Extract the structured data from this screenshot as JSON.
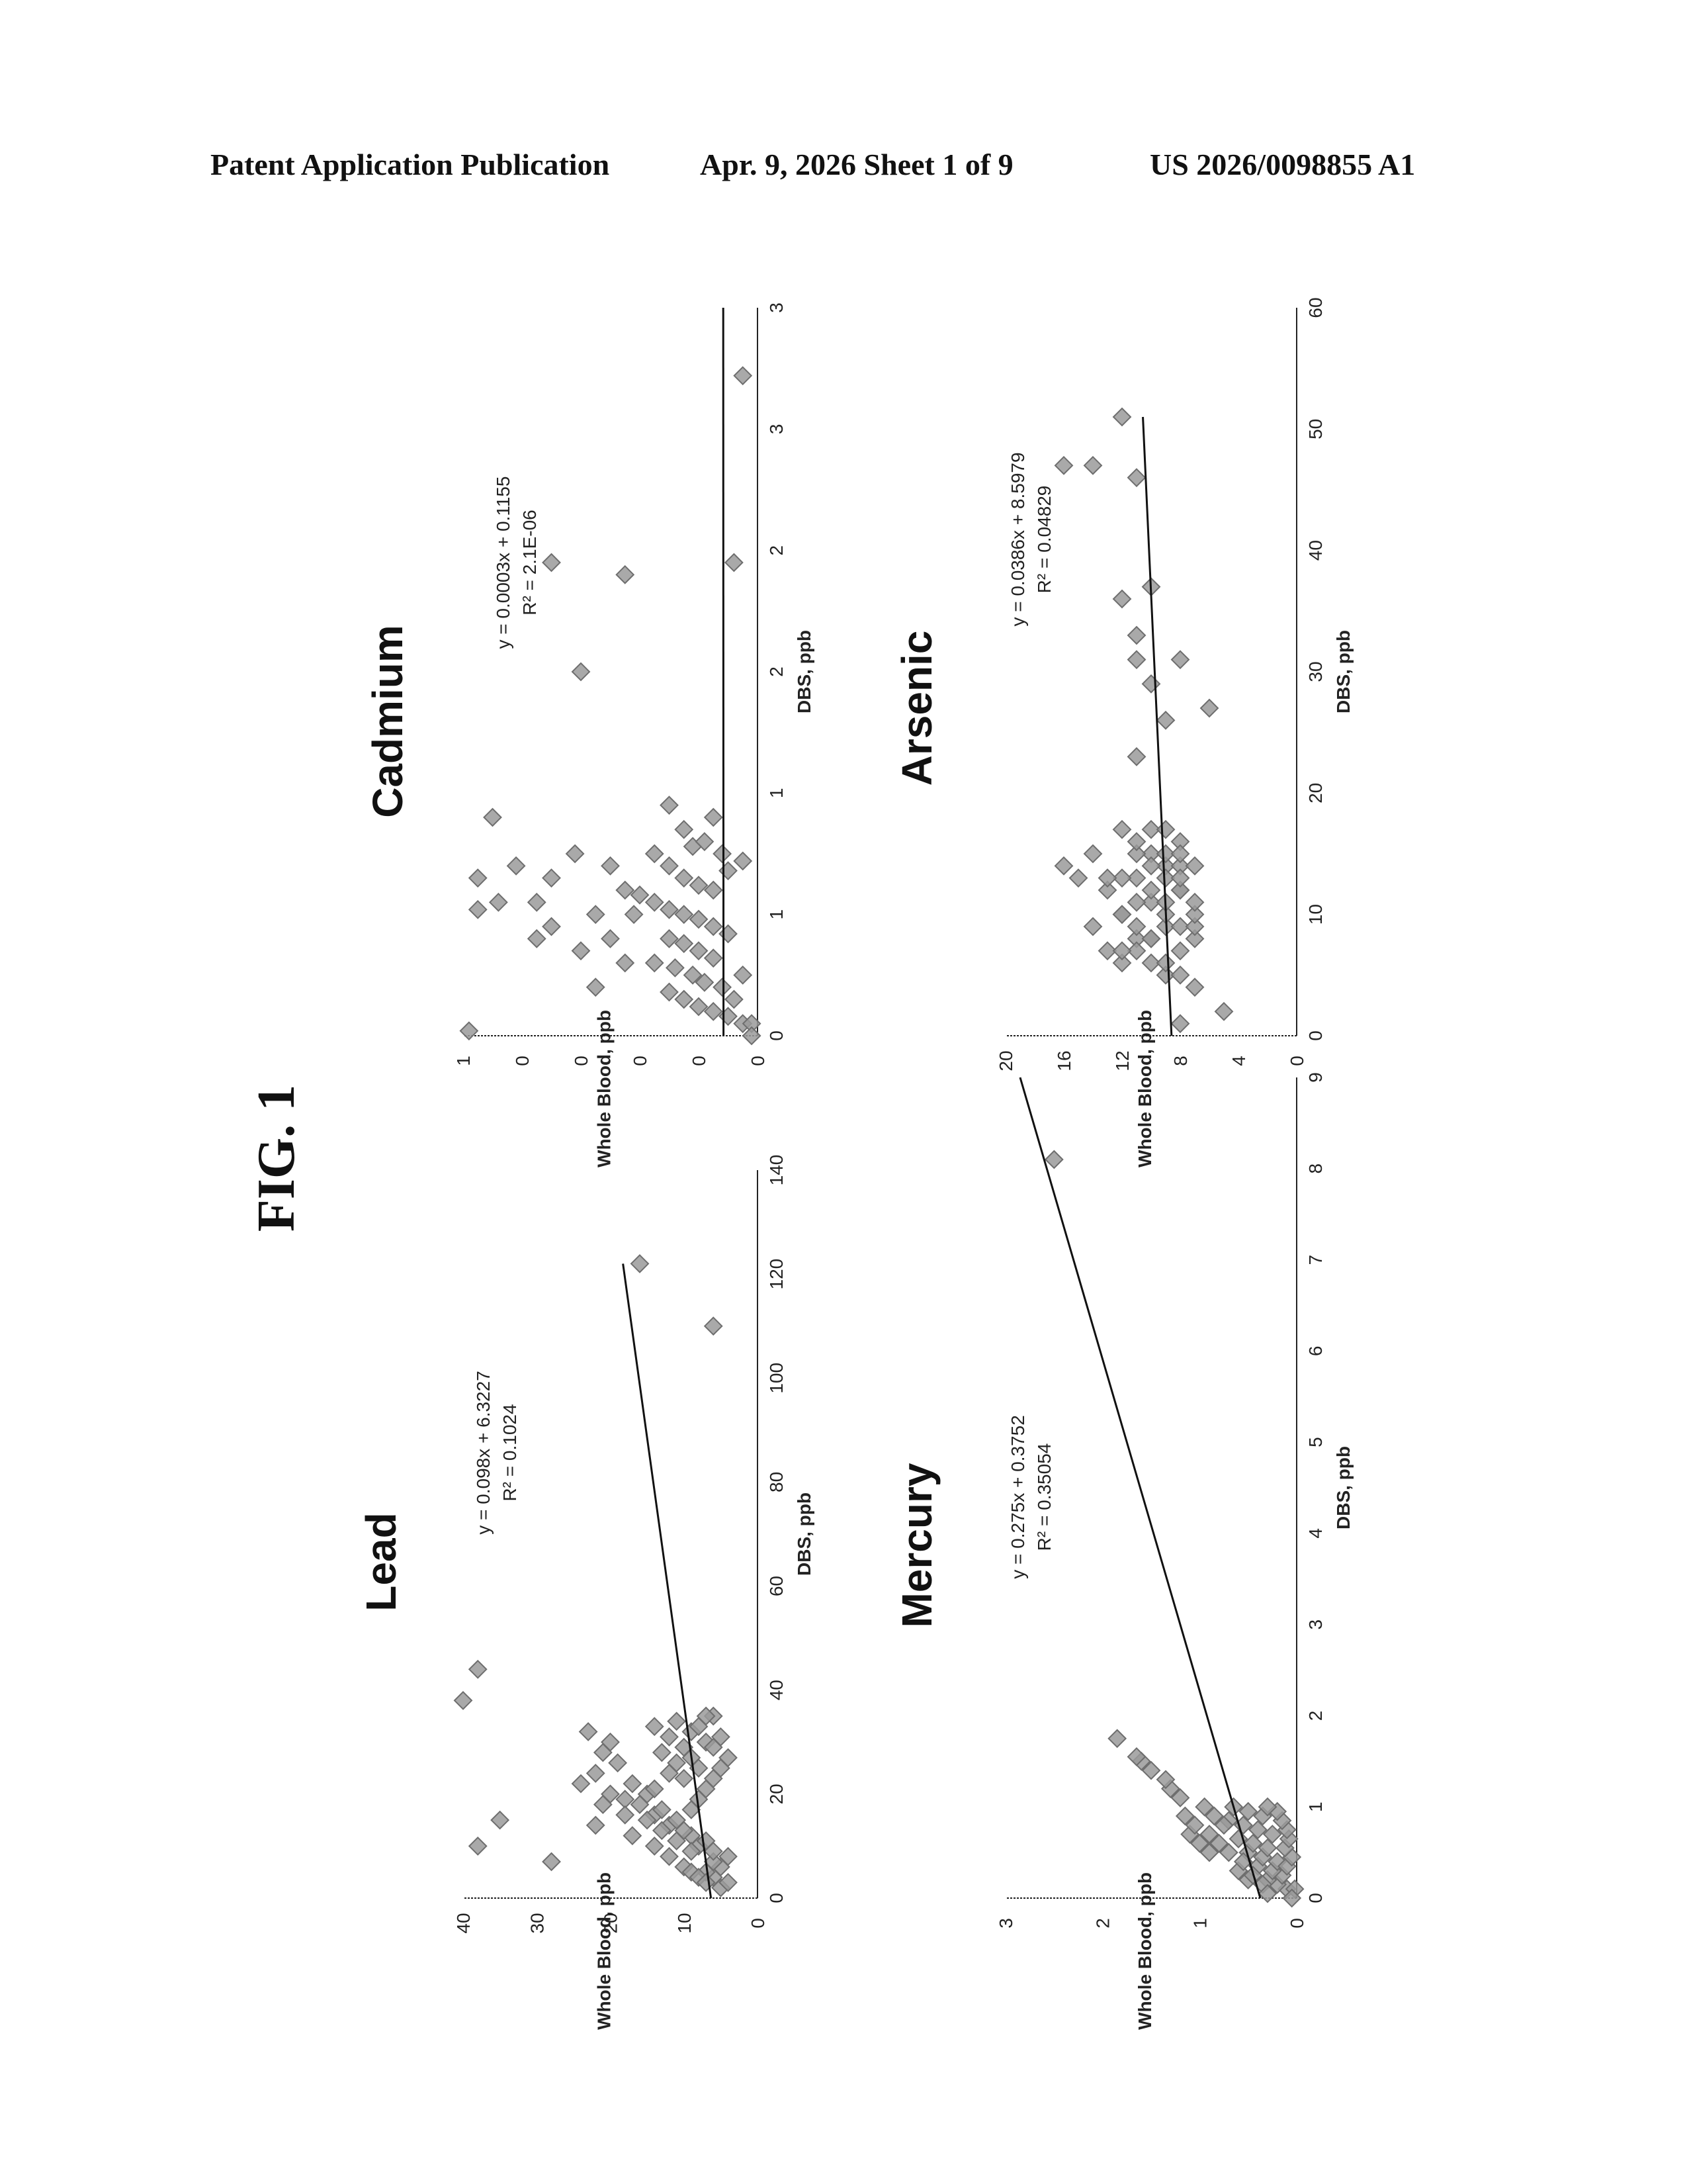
{
  "header": {
    "left": "Patent Application Publication",
    "date_sheet": "Apr. 9, 2026   Sheet 1 of 9",
    "number": "US 2026/0098855 A1"
  },
  "figure_label": "FIG. 1",
  "colors": {
    "marker": "#9a9a9a",
    "marker_stroke": "#6e6e6e",
    "line": "#111111",
    "axis": "#222222"
  },
  "chart_data": [
    {
      "type": "scatter",
      "title": "Lead",
      "xlabel": "DBS, ppb",
      "ylabel": "Whole Blood, ppb",
      "xlim": [
        0,
        140
      ],
      "ylim": [
        0,
        40
      ],
      "xticks": [
        "0",
        "20",
        "40",
        "60",
        "80",
        "100",
        "120",
        "140"
      ],
      "yticks": [
        "0",
        "10",
        "20",
        "30",
        "40"
      ],
      "equation": "y = 0.098x + 6.3227",
      "r2": "R² = 0.1024",
      "trendline": {
        "slope": 0.098,
        "intercept": 6.3227,
        "x": [
          0,
          122
        ]
      },
      "points": [
        [
          2,
          5
        ],
        [
          3,
          4
        ],
        [
          4,
          6
        ],
        [
          5,
          7
        ],
        [
          6,
          5
        ],
        [
          7,
          6
        ],
        [
          8,
          4
        ],
        [
          9,
          6
        ],
        [
          10,
          8
        ],
        [
          11,
          7
        ],
        [
          12,
          9
        ],
        [
          13,
          10
        ],
        [
          14,
          12
        ],
        [
          15,
          11
        ],
        [
          16,
          14
        ],
        [
          17,
          13
        ],
        [
          18,
          16
        ],
        [
          19,
          18
        ],
        [
          20,
          15
        ],
        [
          21,
          14
        ],
        [
          22,
          17
        ],
        [
          23,
          10
        ],
        [
          24,
          12
        ],
        [
          25,
          8
        ],
        [
          26,
          11
        ],
        [
          27,
          9
        ],
        [
          28,
          13
        ],
        [
          29,
          10
        ],
        [
          30,
          7
        ],
        [
          31,
          12
        ],
        [
          32,
          9
        ],
        [
          33,
          14
        ],
        [
          34,
          11
        ],
        [
          35,
          6
        ],
        [
          14,
          22
        ],
        [
          18,
          21
        ],
        [
          20,
          20
        ],
        [
          22,
          24
        ],
        [
          24,
          22
        ],
        [
          26,
          19
        ],
        [
          28,
          21
        ],
        [
          30,
          20
        ],
        [
          32,
          23
        ],
        [
          16,
          18
        ],
        [
          12,
          17
        ],
        [
          10,
          14
        ],
        [
          8,
          12
        ],
        [
          6,
          10
        ],
        [
          5,
          9
        ],
        [
          4,
          8
        ],
        [
          3,
          7
        ],
        [
          9,
          9
        ],
        [
          11,
          11
        ],
        [
          13,
          13
        ],
        [
          15,
          15
        ],
        [
          17,
          9
        ],
        [
          19,
          8
        ],
        [
          21,
          7
        ],
        [
          23,
          6
        ],
        [
          25,
          5
        ],
        [
          27,
          4
        ],
        [
          29,
          6
        ],
        [
          31,
          5
        ],
        [
          33,
          8
        ],
        [
          35,
          7
        ],
        [
          15,
          35
        ],
        [
          7,
          28
        ],
        [
          10,
          38
        ],
        [
          38,
          40
        ],
        [
          44,
          38
        ],
        [
          122,
          16
        ],
        [
          110,
          6
        ]
      ]
    },
    {
      "type": "scatter",
      "title": "Cadmium",
      "xlabel": "DBS, ppb",
      "ylabel": "Whole Blood, ppb",
      "xlim": [
        0,
        3
      ],
      "ylim": [
        0,
        1
      ],
      "xticks": [
        "0",
        "1",
        "1",
        "2",
        "2",
        "3",
        "3"
      ],
      "yticks": [
        "0",
        "0",
        "0",
        "0",
        "0",
        "1"
      ],
      "equation": "y = 0.0003x + 0.1155",
      "r2": "R² = 2.1E-06",
      "trendline": {
        "slope": 0.0003,
        "intercept": 0.1155,
        "x": [
          0,
          3
        ]
      },
      "points": [
        [
          0.05,
          0.05
        ],
        [
          0.08,
          0.1
        ],
        [
          0.1,
          0.15
        ],
        [
          0.12,
          0.2
        ],
        [
          0.15,
          0.25
        ],
        [
          0.18,
          0.3
        ],
        [
          0.2,
          0.12
        ],
        [
          0.22,
          0.18
        ],
        [
          0.25,
          0.22
        ],
        [
          0.28,
          0.28
        ],
        [
          0.3,
          0.35
        ],
        [
          0.32,
          0.15
        ],
        [
          0.35,
          0.2
        ],
        [
          0.38,
          0.25
        ],
        [
          0.4,
          0.3
        ],
        [
          0.42,
          0.1
        ],
        [
          0.45,
          0.15
        ],
        [
          0.48,
          0.2
        ],
        [
          0.5,
          0.25
        ],
        [
          0.52,
          0.3
        ],
        [
          0.55,
          0.35
        ],
        [
          0.58,
          0.4
        ],
        [
          0.6,
          0.15
        ],
        [
          0.62,
          0.2
        ],
        [
          0.65,
          0.25
        ],
        [
          0.68,
          0.1
        ],
        [
          0.7,
          0.3
        ],
        [
          0.72,
          0.05
        ],
        [
          0.75,
          0.12
        ],
        [
          0.78,
          0.22
        ],
        [
          0.8,
          0.18
        ],
        [
          0.3,
          0.45
        ],
        [
          0.4,
          0.5
        ],
        [
          0.5,
          0.42
        ],
        [
          0.6,
          0.45
        ],
        [
          0.7,
          0.5
        ],
        [
          0.2,
          0.55
        ],
        [
          0.35,
          0.6
        ],
        [
          0.5,
          0.55
        ],
        [
          0.45,
          0.7
        ],
        [
          0.55,
          0.75
        ],
        [
          0.65,
          0.7
        ],
        [
          0.75,
          0.35
        ],
        [
          0.85,
          0.25
        ],
        [
          0.9,
          0.15
        ],
        [
          0.95,
          0.3
        ],
        [
          0.25,
          0.05
        ],
        [
          0.05,
          0.02
        ],
        [
          0.15,
          0.08
        ],
        [
          0.4,
          0.75
        ],
        [
          0.65,
          0.95
        ],
        [
          0.9,
          0.9
        ],
        [
          0.52,
          0.95
        ],
        [
          0.55,
          0.88
        ],
        [
          0.7,
          0.82
        ],
        [
          0.75,
          0.62
        ],
        [
          1.5,
          0.6
        ],
        [
          1.95,
          0.7
        ],
        [
          1.9,
          0.45
        ],
        [
          1.95,
          0.08
        ],
        [
          2.72,
          0.05
        ],
        [
          0.02,
          0.98
        ],
        [
          0.0,
          0.02
        ]
      ]
    },
    {
      "type": "scatter",
      "title": "Mercury",
      "xlabel": "DBS, ppb",
      "ylabel": "Whole Blood, ppb",
      "xlim": [
        0,
        9
      ],
      "ylim": [
        0,
        3
      ],
      "xticks": [
        "0",
        "1",
        "2",
        "3",
        "4",
        "5",
        "6",
        "7",
        "8",
        "9"
      ],
      "yticks": [
        "0",
        "1",
        "2",
        "3"
      ],
      "equation": "y = 0.275x + 0.3752",
      "r2": "R² = 0.35054",
      "trendline": {
        "slope": 0.275,
        "intercept": 0.3752,
        "x": [
          0,
          9
        ]
      },
      "points": [
        [
          0.1,
          0.1
        ],
        [
          0.15,
          0.2
        ],
        [
          0.2,
          0.3
        ],
        [
          0.25,
          0.15
        ],
        [
          0.3,
          0.25
        ],
        [
          0.35,
          0.4
        ],
        [
          0.4,
          0.2
        ],
        [
          0.45,
          0.35
        ],
        [
          0.5,
          0.5
        ],
        [
          0.55,
          0.3
        ],
        [
          0.6,
          0.45
        ],
        [
          0.65,
          0.6
        ],
        [
          0.7,
          0.25
        ],
        [
          0.75,
          0.4
        ],
        [
          0.8,
          0.55
        ],
        [
          0.85,
          0.7
        ],
        [
          0.9,
          0.35
        ],
        [
          0.95,
          0.5
        ],
        [
          1.0,
          0.65
        ],
        [
          0.2,
          0.5
        ],
        [
          0.3,
          0.6
        ],
        [
          0.4,
          0.55
        ],
        [
          0.5,
          0.7
        ],
        [
          0.6,
          0.8
        ],
        [
          0.7,
          0.9
        ],
        [
          0.8,
          0.75
        ],
        [
          0.9,
          0.85
        ],
        [
          1.0,
          0.95
        ],
        [
          0.15,
          0.35
        ],
        [
          0.25,
          0.45
        ],
        [
          0.35,
          0.1
        ],
        [
          0.45,
          0.05
        ],
        [
          0.55,
          0.12
        ],
        [
          0.65,
          0.08
        ],
        [
          0.75,
          0.1
        ],
        [
          0.85,
          0.15
        ],
        [
          0.95,
          0.2
        ],
        [
          1.0,
          0.3
        ],
        [
          0.5,
          0.9
        ],
        [
          0.6,
          1.0
        ],
        [
          0.7,
          1.1
        ],
        [
          0.8,
          1.05
        ],
        [
          0.9,
          1.15
        ],
        [
          0.1,
          0.02
        ],
        [
          1.1,
          1.2
        ],
        [
          1.2,
          1.3
        ],
        [
          1.3,
          1.35
        ],
        [
          1.4,
          1.5
        ],
        [
          1.5,
          1.6
        ],
        [
          1.55,
          1.65
        ],
        [
          1.75,
          1.85
        ],
        [
          8.1,
          2.5
        ],
        [
          0.05,
          0.3
        ],
        [
          0.0,
          0.05
        ]
      ]
    },
    {
      "type": "scatter",
      "title": "Arsenic",
      "xlabel": "DBS, ppb",
      "ylabel": "Whole Blood, ppb",
      "xlim": [
        0,
        60
      ],
      "ylim": [
        0,
        20
      ],
      "xticks": [
        "0",
        "10",
        "20",
        "30",
        "40",
        "50",
        "60"
      ],
      "yticks": [
        "0",
        "4",
        "8",
        "12",
        "16",
        "20"
      ],
      "equation": "y = 0.0386x + 8.5979",
      "r2": "R² = 0.04829",
      "trendline": {
        "slope": 0.0386,
        "intercept": 8.5979,
        "x": [
          0,
          51
        ]
      },
      "points": [
        [
          4,
          7
        ],
        [
          5,
          9
        ],
        [
          6,
          10
        ],
        [
          7,
          8
        ],
        [
          8,
          11
        ],
        [
          9,
          9
        ],
        [
          10,
          12
        ],
        [
          11,
          10
        ],
        [
          12,
          8
        ],
        [
          13,
          11
        ],
        [
          14,
          9
        ],
        [
          15,
          10
        ],
        [
          16,
          8
        ],
        [
          5,
          8
        ],
        [
          6,
          9
        ],
        [
          7,
          11
        ],
        [
          8,
          10
        ],
        [
          9,
          8
        ],
        [
          10,
          9
        ],
        [
          11,
          11
        ],
        [
          12,
          10
        ],
        [
          13,
          9
        ],
        [
          14,
          8
        ],
        [
          15,
          11
        ],
        [
          6,
          12
        ],
        [
          7,
          13
        ],
        [
          8,
          10
        ],
        [
          9,
          11
        ],
        [
          10,
          12
        ],
        [
          11,
          9
        ],
        [
          12,
          13
        ],
        [
          13,
          12
        ],
        [
          14,
          10
        ],
        [
          15,
          9
        ],
        [
          16,
          11
        ],
        [
          17,
          10
        ],
        [
          17,
          9
        ],
        [
          8,
          7
        ],
        [
          9,
          7
        ],
        [
          10,
          7
        ],
        [
          11,
          7
        ],
        [
          12,
          8
        ],
        [
          13,
          8
        ],
        [
          14,
          7
        ],
        [
          15,
          8
        ],
        [
          9,
          14
        ],
        [
          7,
          12
        ],
        [
          15,
          14
        ],
        [
          13,
          13
        ],
        [
          13,
          15
        ],
        [
          14,
          16
        ],
        [
          17,
          12
        ],
        [
          23,
          11
        ],
        [
          26,
          9
        ],
        [
          29,
          10
        ],
        [
          31,
          8
        ],
        [
          33,
          11
        ],
        [
          27,
          6
        ],
        [
          31,
          11
        ],
        [
          36,
          12
        ],
        [
          37,
          10
        ],
        [
          46,
          11
        ],
        [
          47,
          14
        ],
        [
          47,
          16
        ],
        [
          51,
          12
        ],
        [
          1,
          8
        ],
        [
          2,
          5
        ]
      ]
    }
  ]
}
